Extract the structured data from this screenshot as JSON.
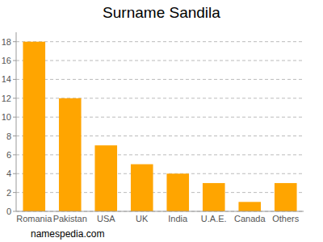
{
  "chart_data": {
    "type": "bar",
    "title": "Surname Sandila",
    "categories": [
      "Romania",
      "Pakistan",
      "USA",
      "UK",
      "India",
      "U.A.E.",
      "Canada",
      "Others"
    ],
    "values": [
      18,
      12,
      7,
      5,
      4,
      3,
      1,
      3
    ],
    "color": "#ffa500",
    "ylim": [
      0,
      19
    ],
    "yticks": [
      0,
      2,
      4,
      6,
      8,
      10,
      12,
      14,
      16,
      18
    ],
    "grid": true,
    "annotations": [
      "namespedia.com"
    ]
  }
}
